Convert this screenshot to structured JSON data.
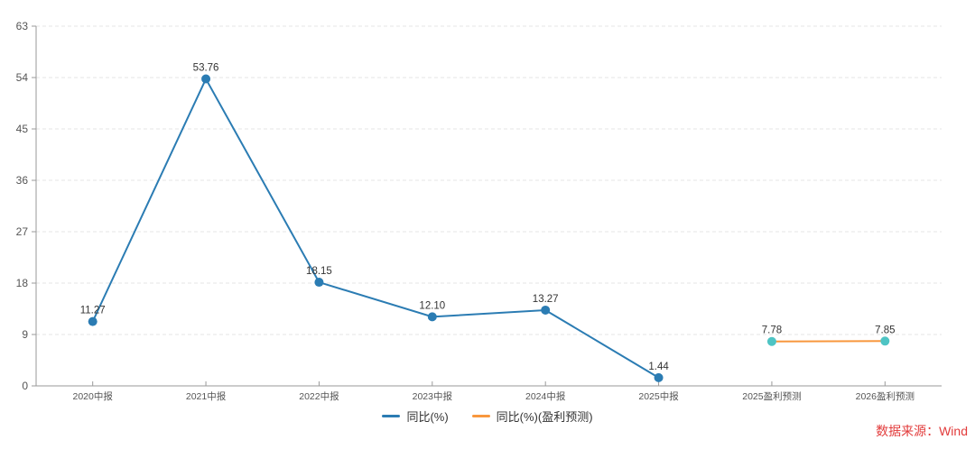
{
  "chart_data": {
    "type": "line",
    "categories": [
      "2020中报",
      "2021中报",
      "2022中报",
      "2023中报",
      "2024中报",
      "2025中报",
      "2025盈利预测",
      "2026盈利预测"
    ],
    "series": [
      {
        "name": "同比(%)",
        "color": "#2b7cb3",
        "point_color": "#2b7cb3",
        "values": [
          11.27,
          53.76,
          18.15,
          12.1,
          13.27,
          1.44,
          null,
          null
        ]
      },
      {
        "name": "同比(%)(盈利预测)",
        "color": "#f8973d",
        "point_color": "#4ec4c4",
        "values": [
          null,
          null,
          null,
          null,
          null,
          null,
          7.78,
          7.85
        ]
      }
    ],
    "title": "",
    "xlabel": "",
    "ylabel": "",
    "ylim": [
      0,
      63
    ],
    "yticks": [
      0,
      9,
      18,
      27,
      36,
      45,
      54,
      63
    ],
    "grid": true,
    "grid_style": "dashed",
    "legend_position": "bottom",
    "label_decimals": 2,
    "colors": {
      "axis": "#9a9a9a",
      "tick_label": "#555555",
      "grid": "#e6e6e6",
      "data_label": "#333333"
    }
  },
  "legend": {
    "items": [
      {
        "label": "同比(%)",
        "color": "#2b7cb3"
      },
      {
        "label": "同比(%)(盈利预测)",
        "color": "#f8973d"
      }
    ]
  },
  "footer": {
    "source_label": "数据来源：Wind",
    "source_color": "#e23b3b"
  }
}
